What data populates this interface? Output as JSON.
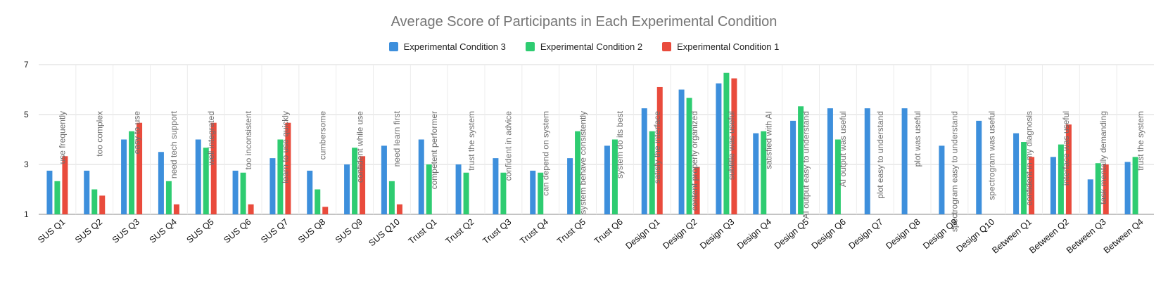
{
  "chart_data": {
    "type": "bar",
    "title": "Average Score of Participants in Each Experimental Condition",
    "xlabel": "",
    "ylabel": "",
    "ylim": [
      1,
      7
    ],
    "yticks": [
      1,
      3,
      5,
      7
    ],
    "grid": true,
    "legend_position": "top-center",
    "categories": [
      "SUS Q1",
      "SUS Q2",
      "SUS Q3",
      "SUS Q4",
      "SUS Q5",
      "SUS Q6",
      "SUS Q7",
      "SUS Q8",
      "SUS Q9",
      "SUS Q10",
      "Trust Q1",
      "Trust Q2",
      "Trust Q3",
      "Trust Q4",
      "Trust Q5",
      "Trust Q6",
      "Design Q1",
      "Design Q2",
      "Design Q3",
      "Design Q4",
      "Design Q5",
      "Design Q6",
      "Design Q7",
      "Design Q8",
      "Design Q9",
      "Design Q10",
      "Between Q1",
      "Between Q2",
      "Between Q3",
      "Between Q4"
    ],
    "annotations": [
      "use frequently",
      "too complex",
      "easy to use",
      "need tech support",
      "well integrated",
      "too inconsistent",
      "learn to use quickly",
      "cumbersome",
      "confident while use",
      "need learn first",
      "competent performer",
      "trust the system",
      "confident in advice",
      "can depend on system",
      "system behave consistently",
      "system do its best",
      "satisfy the interface",
      "content properly organized",
      "subtitle was useful",
      "satisfied with AI",
      "AI output easy to understand",
      "AI output was useful",
      "plot easy to understand",
      "plot was useful",
      "spectrogram easy to understand",
      "spectrogram was useful",
      "confident in my diagnosis",
      "interface was useful",
      "task mentally demanding",
      "trust the system"
    ],
    "series": [
      {
        "name": "Experimental Condition 3",
        "color": "#3d8fdc",
        "values": [
          2.75,
          2.75,
          4.0,
          3.5,
          4.0,
          2.75,
          3.25,
          2.75,
          3.0,
          3.75,
          4.0,
          3.0,
          3.25,
          2.75,
          3.25,
          3.75,
          5.25,
          6.0,
          6.25,
          4.25,
          4.75,
          5.25,
          5.25,
          5.25,
          3.75,
          4.75,
          4.25,
          3.3,
          2.4,
          3.1
        ]
      },
      {
        "name": "Experimental Condition 2",
        "color": "#2ecc71",
        "values": [
          2.33,
          2.0,
          4.33,
          2.33,
          3.67,
          2.67,
          4.0,
          2.0,
          3.67,
          2.33,
          3.0,
          2.67,
          2.67,
          2.67,
          4.33,
          4.0,
          4.33,
          5.67,
          6.67,
          4.33,
          5.33,
          4.0,
          null,
          null,
          null,
          null,
          3.9,
          3.8,
          3.05,
          3.3
        ]
      },
      {
        "name": "Experimental Condition 1",
        "color": "#e94b3c",
        "values": [
          3.33,
          1.75,
          4.67,
          1.4,
          4.67,
          1.4,
          4.67,
          1.3,
          3.33,
          1.4,
          null,
          null,
          null,
          null,
          null,
          null,
          6.1,
          2.9,
          6.45,
          null,
          null,
          null,
          null,
          null,
          null,
          null,
          3.3,
          4.6,
          3.0,
          null
        ]
      }
    ]
  }
}
